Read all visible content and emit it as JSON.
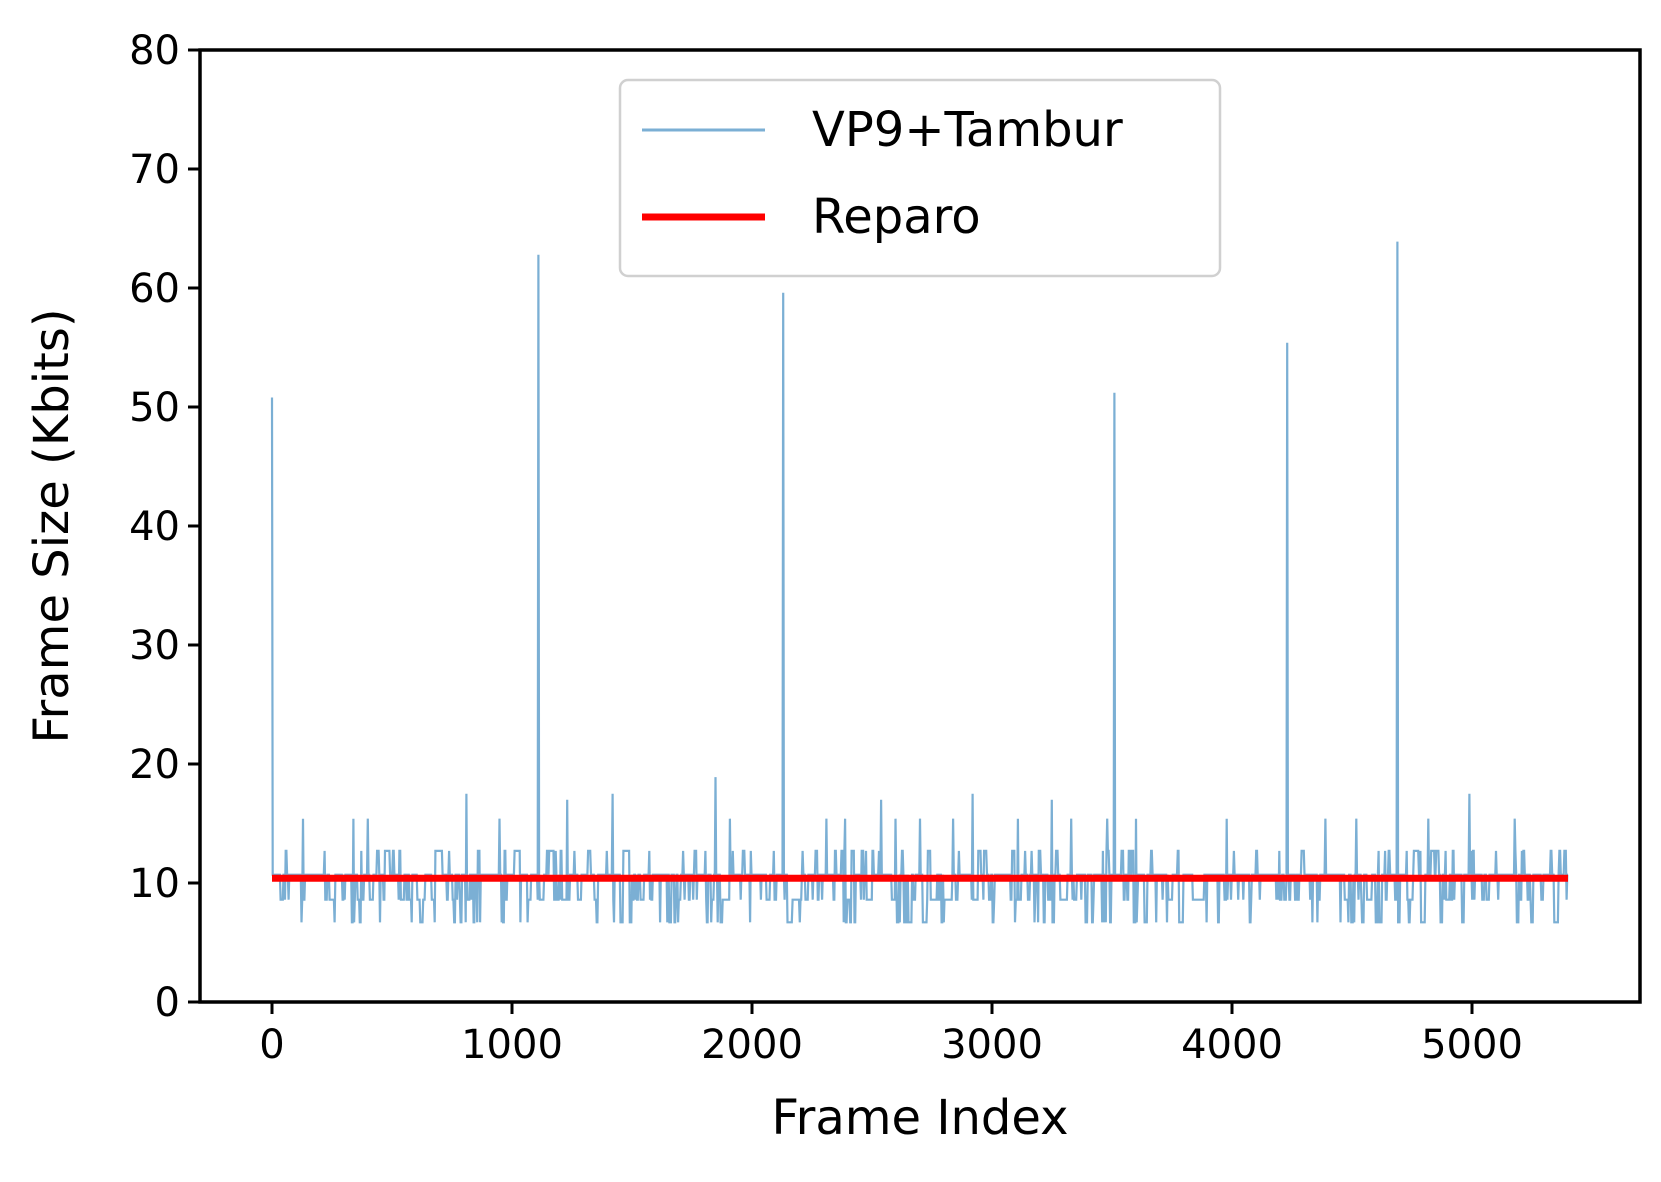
{
  "chart_data": {
    "type": "line",
    "title": "",
    "xlabel": "Frame Index",
    "ylabel": "Frame Size (Kbits)",
    "xlim": [
      -300,
      5700
    ],
    "ylim": [
      0,
      80
    ],
    "xticks": [
      0,
      1000,
      2000,
      3000,
      4000,
      5000
    ],
    "yticks": [
      0,
      10,
      20,
      30,
      40,
      50,
      60,
      70,
      80
    ],
    "xtick_labels": [
      "0",
      "1000",
      "2000",
      "3000",
      "4000",
      "5000"
    ],
    "ytick_labels": [
      "0",
      "10",
      "20",
      "30",
      "40",
      "50",
      "60",
      "70",
      "80"
    ],
    "grid": false,
    "legend_position": "top-center",
    "series": [
      {
        "name": "VP9+Tambur",
        "color": "#7bafd4",
        "style": "thin line",
        "baseline_range": [
          6.5,
          12.8
        ],
        "frame_count": 5400,
        "spikes": [
          {
            "x": 0,
            "y": 50.8
          },
          {
            "x": 1110,
            "y": 62.8
          },
          {
            "x": 2130,
            "y": 59.6
          },
          {
            "x": 3510,
            "y": 51.2
          },
          {
            "x": 4230,
            "y": 55.4
          },
          {
            "x": 4690,
            "y": 63.9
          },
          {
            "x": 130,
            "y": 15.4
          },
          {
            "x": 340,
            "y": 15.4
          },
          {
            "x": 400,
            "y": 15.4
          },
          {
            "x": 810,
            "y": 17.5
          },
          {
            "x": 950,
            "y": 15.4
          },
          {
            "x": 1230,
            "y": 17.0
          },
          {
            "x": 1420,
            "y": 17.5
          },
          {
            "x": 1850,
            "y": 18.9
          },
          {
            "x": 1910,
            "y": 15.4
          },
          {
            "x": 2310,
            "y": 15.4
          },
          {
            "x": 2390,
            "y": 15.4
          },
          {
            "x": 2540,
            "y": 17.0
          },
          {
            "x": 2600,
            "y": 15.4
          },
          {
            "x": 2700,
            "y": 15.4
          },
          {
            "x": 2840,
            "y": 15.4
          },
          {
            "x": 2920,
            "y": 17.5
          },
          {
            "x": 3110,
            "y": 15.4
          },
          {
            "x": 3250,
            "y": 17.0
          },
          {
            "x": 3330,
            "y": 15.4
          },
          {
            "x": 3480,
            "y": 15.4
          },
          {
            "x": 3600,
            "y": 15.4
          },
          {
            "x": 3980,
            "y": 15.4
          },
          {
            "x": 4390,
            "y": 15.4
          },
          {
            "x": 4520,
            "y": 15.4
          },
          {
            "x": 4820,
            "y": 15.4
          },
          {
            "x": 4990,
            "y": 17.5
          },
          {
            "x": 5180,
            "y": 15.4
          }
        ]
      },
      {
        "name": "Reparo",
        "color": "#ff0000",
        "style": "thick line",
        "x": [
          0,
          5400
        ],
        "y": [
          10.4,
          10.4
        ]
      }
    ]
  }
}
